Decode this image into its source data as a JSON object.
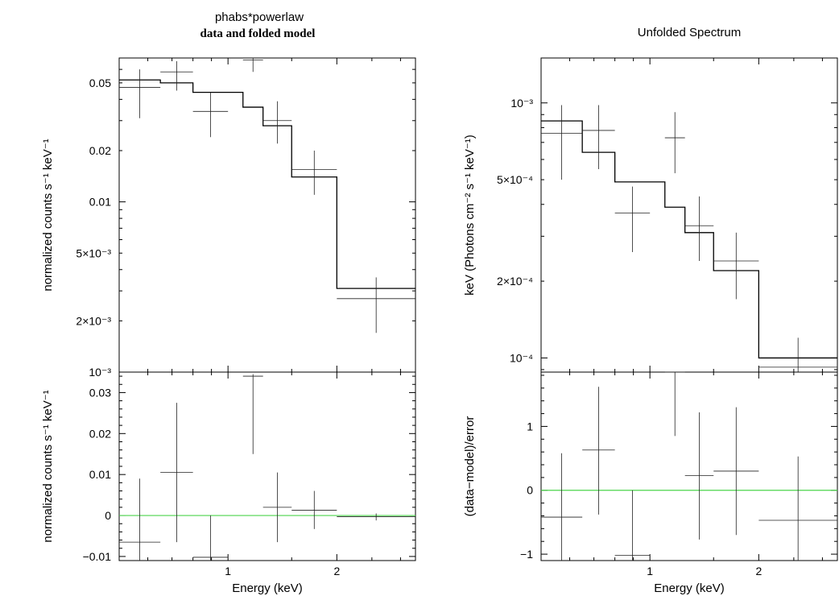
{
  "chart_data": [
    {
      "type": "step-errorbar",
      "panel": "left-top",
      "title": "phabs*powerlaw",
      "subtitle": "data and folded model",
      "xlabel": "",
      "ylabel": "normalized counts s⁻¹ keV⁻¹",
      "yscale": "log",
      "xscale": "log",
      "xlim": [
        0.5,
        3.3
      ],
      "ylim": [
        0.001,
        0.07
      ],
      "yticks": [
        {
          "v": 0.05,
          "label": "0.05"
        },
        {
          "v": 0.02,
          "label": "0.02"
        },
        {
          "v": 0.01,
          "label": "0.01"
        },
        {
          "v": 0.005,
          "label": "5×10⁻³"
        },
        {
          "v": 0.002,
          "label": "2×10⁻³"
        },
        {
          "v": 0.001,
          "label": "10⁻³"
        }
      ],
      "data": [
        {
          "xlo": 0.5,
          "xhi": 0.65,
          "y": 0.047,
          "ylo": 0.031,
          "yhi": 0.06
        },
        {
          "xlo": 0.65,
          "xhi": 0.8,
          "y": 0.058,
          "ylo": 0.045,
          "yhi": 0.067
        },
        {
          "xlo": 0.8,
          "xhi": 1.0,
          "y": 0.034,
          "ylo": 0.024,
          "yhi": 0.044
        },
        {
          "xlo": 1.1,
          "xhi": 1.25,
          "y": 0.068,
          "ylo": 0.058,
          "yhi": 0.075
        },
        {
          "xlo": 1.25,
          "xhi": 1.5,
          "y": 0.03,
          "ylo": 0.022,
          "yhi": 0.039
        },
        {
          "xlo": 1.5,
          "xhi": 2.0,
          "y": 0.0155,
          "ylo": 0.011,
          "yhi": 0.02
        },
        {
          "xlo": 2.0,
          "xhi": 3.3,
          "y": 0.0027,
          "ylo": 0.0017,
          "yhi": 0.0036
        }
      ],
      "model": [
        {
          "xlo": 0.5,
          "xhi": 0.65,
          "y": 0.052
        },
        {
          "xlo": 0.65,
          "xhi": 0.8,
          "y": 0.05
        },
        {
          "xlo": 0.8,
          "xhi": 1.0,
          "y": 0.044
        },
        {
          "xlo": 1.0,
          "xhi": 1.1,
          "y": 0.044
        },
        {
          "xlo": 1.1,
          "xhi": 1.25,
          "y": 0.036
        },
        {
          "xlo": 1.25,
          "xhi": 1.5,
          "y": 0.028
        },
        {
          "xlo": 1.5,
          "xhi": 2.0,
          "y": 0.014
        },
        {
          "xlo": 2.0,
          "xhi": 3.3,
          "y": 0.0031
        }
      ]
    },
    {
      "type": "errorbar",
      "panel": "left-bottom",
      "xlabel": "Energy (keV)",
      "ylabel": "normalized counts s⁻¹ keV⁻¹",
      "xscale": "log",
      "xlim": [
        0.5,
        3.3
      ],
      "ylim": [
        -0.011,
        0.035
      ],
      "xticks": [
        {
          "v": 1,
          "label": "1"
        },
        {
          "v": 2,
          "label": "2"
        }
      ],
      "yticks": [
        {
          "v": 0.03,
          "label": "0.03"
        },
        {
          "v": 0.02,
          "label": "0.02"
        },
        {
          "v": 0.01,
          "label": "0.01"
        },
        {
          "v": 0,
          "label": "0"
        },
        {
          "v": -0.01,
          "label": "−0.01"
        }
      ],
      "data": [
        {
          "xlo": 0.5,
          "xhi": 0.65,
          "y": -0.0065,
          "ylo": -0.0115,
          "yhi": 0.009
        },
        {
          "xlo": 0.65,
          "xhi": 0.8,
          "y": 0.0105,
          "ylo": -0.0065,
          "yhi": 0.0275
        },
        {
          "xlo": 0.8,
          "xhi": 1.0,
          "y": -0.0102,
          "ylo": -0.0115,
          "yhi": 0.0
        },
        {
          "xlo": 1.1,
          "xhi": 1.25,
          "y": 0.034,
          "ylo": 0.015,
          "yhi": 0.0345
        },
        {
          "xlo": 1.25,
          "xhi": 1.5,
          "y": 0.002,
          "ylo": -0.0065,
          "yhi": 0.0105
        },
        {
          "xlo": 1.5,
          "xhi": 2.0,
          "y": 0.0013,
          "ylo": -0.0033,
          "yhi": 0.006
        },
        {
          "xlo": 2.0,
          "xhi": 3.3,
          "y": -0.0003,
          "ylo": -0.0012,
          "yhi": 0.0005
        }
      ],
      "reference_line": 0
    },
    {
      "type": "step-errorbar",
      "panel": "right-top",
      "title": "Unfolded Spectrum",
      "xlabel": "",
      "ylabel": "keV (Photons cm⁻² s⁻¹ keV⁻¹)",
      "yscale": "log",
      "xscale": "log",
      "xlim": [
        0.5,
        3.3
      ],
      "ylim": [
        8.8e-05,
        0.0015
      ],
      "yticks": [
        {
          "v": 0.001,
          "label": "10⁻³"
        },
        {
          "v": 0.0005,
          "label": "5×10⁻⁴"
        },
        {
          "v": 0.0002,
          "label": "2×10⁻⁴"
        },
        {
          "v": 0.0001,
          "label": "10⁻⁴"
        }
      ],
      "data": [
        {
          "xlo": 0.5,
          "xhi": 0.65,
          "y": 0.00076,
          "ylo": 0.0005,
          "yhi": 0.00098
        },
        {
          "xlo": 0.65,
          "xhi": 0.8,
          "y": 0.00078,
          "ylo": 0.00055,
          "yhi": 0.00098
        },
        {
          "xlo": 0.8,
          "xhi": 1.0,
          "y": 0.00037,
          "ylo": 0.00026,
          "yhi": 0.00047
        },
        {
          "xlo": 1.1,
          "xhi": 1.25,
          "y": 0.00073,
          "ylo": 0.00053,
          "yhi": 0.00092
        },
        {
          "xlo": 1.25,
          "xhi": 1.5,
          "y": 0.00033,
          "ylo": 0.00024,
          "yhi": 0.00043
        },
        {
          "xlo": 1.5,
          "xhi": 2.0,
          "y": 0.00024,
          "ylo": 0.00017,
          "yhi": 0.00031
        },
        {
          "xlo": 2.0,
          "xhi": 3.3,
          "y": 9.2e-05,
          "ylo": 8.8e-05,
          "yhi": 0.00012
        }
      ],
      "model": [
        {
          "xlo": 0.5,
          "xhi": 0.65,
          "y": 0.00085
        },
        {
          "xlo": 0.65,
          "xhi": 0.8,
          "y": 0.00064
        },
        {
          "xlo": 0.8,
          "xhi": 1.1,
          "y": 0.00049
        },
        {
          "xlo": 1.1,
          "xhi": 1.25,
          "y": 0.00039
        },
        {
          "xlo": 1.25,
          "xhi": 1.5,
          "y": 0.00031
        },
        {
          "xlo": 1.5,
          "xhi": 2.0,
          "y": 0.00022
        },
        {
          "xlo": 2.0,
          "xhi": 3.3,
          "y": 0.0001
        }
      ]
    },
    {
      "type": "errorbar",
      "panel": "right-bottom",
      "xlabel": "Energy (keV)",
      "ylabel": "(data−model)/error",
      "xscale": "log",
      "xlim": [
        0.5,
        3.3
      ],
      "ylim": [
        -1.1,
        1.85
      ],
      "xticks": [
        {
          "v": 1,
          "label": "1"
        },
        {
          "v": 2,
          "label": "2"
        }
      ],
      "yticks": [
        {
          "v": 1,
          "label": "1"
        },
        {
          "v": 0,
          "label": "0"
        },
        {
          "v": -1,
          "label": "−1"
        }
      ],
      "data": [
        {
          "xlo": 0.5,
          "xhi": 0.65,
          "y": -0.42,
          "ylo": -1.1,
          "yhi": 0.58
        },
        {
          "xlo": 0.65,
          "xhi": 0.8,
          "y": 0.63,
          "ylo": -0.38,
          "yhi": 1.62
        },
        {
          "xlo": 0.8,
          "xhi": 1.0,
          "y": -1.02,
          "ylo": -1.1,
          "yhi": 0.0
        },
        {
          "xlo": 1.1,
          "xhi": 1.25,
          "y": 1.85,
          "ylo": 0.85,
          "yhi": 1.85
        },
        {
          "xlo": 1.25,
          "xhi": 1.5,
          "y": 0.23,
          "ylo": -0.77,
          "yhi": 1.22
        },
        {
          "xlo": 1.5,
          "xhi": 2.0,
          "y": 0.3,
          "ylo": -0.7,
          "yhi": 1.3
        },
        {
          "xlo": 2.0,
          "xhi": 3.3,
          "y": -0.47,
          "ylo": -1.1,
          "yhi": 0.53
        }
      ],
      "reference_line": 0
    }
  ],
  "colors": {
    "axis": "#000000",
    "zero_line": "#4cd44c",
    "data": "#222222"
  }
}
